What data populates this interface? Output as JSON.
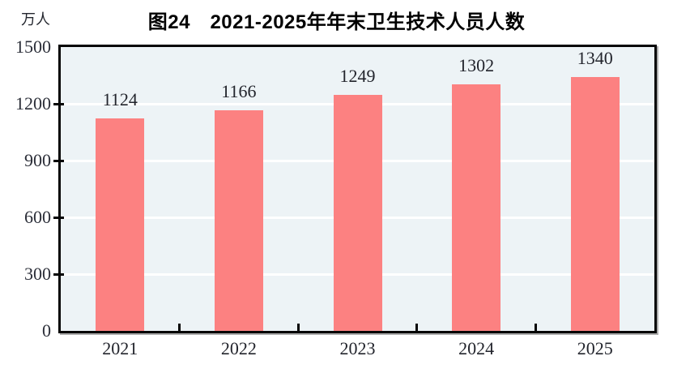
{
  "chart": {
    "unit_label": "万人"
  },
  "chart_data": {
    "type": "bar",
    "title": "图24　2021-2025年年末卫生技术人员人数",
    "categories": [
      "2021",
      "2022",
      "2023",
      "2024",
      "2025"
    ],
    "values": [
      1124,
      1166,
      1249,
      1302,
      1340
    ],
    "xlabel": "",
    "ylabel": "万人",
    "ylim": [
      0,
      1500
    ],
    "yticks": [
      0,
      300,
      600,
      900,
      1200,
      1500
    ],
    "grid": true,
    "legend": "none",
    "colors": {
      "bar_fill": "#fc8181",
      "plot_background": "#edf3f6",
      "gridline": "#ffffff",
      "axis_border": "#050505",
      "title_text": "#000000",
      "label_text": "#22242c"
    }
  }
}
